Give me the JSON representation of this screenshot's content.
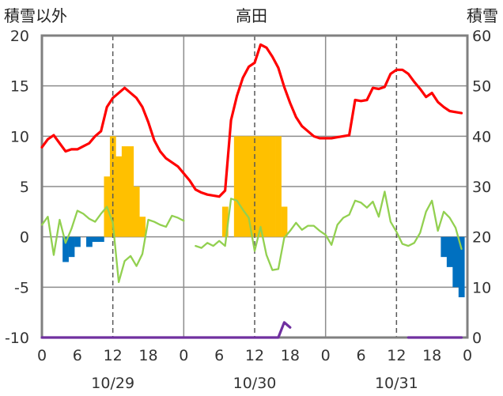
{
  "chart_data": {
    "type": "line",
    "title": "高田",
    "ylabel": "積雪以外",
    "y2label": "積雪",
    "ylim": [
      -10,
      20
    ],
    "y2lim": [
      0,
      60
    ],
    "yticks": [
      "20",
      "15",
      "10",
      "5",
      "0",
      "-5",
      "-10"
    ],
    "y2ticks": [
      "60",
      "50",
      "40",
      "30",
      "20",
      "10",
      "0"
    ],
    "xticks": [
      "0",
      "6",
      "12",
      "18",
      "0",
      "6",
      "12",
      "18",
      "0",
      "6",
      "12",
      "18",
      "0"
    ],
    "dates": [
      "10/29",
      "10/30",
      "10/31"
    ],
    "hours": [
      0,
      1,
      2,
      3,
      4,
      5,
      6,
      7,
      8,
      9,
      10,
      11,
      12,
      13,
      14,
      15,
      16,
      17,
      18,
      19,
      20,
      21,
      22,
      23
    ],
    "grid": true,
    "series": [
      {
        "type": "bar",
        "axis": "left",
        "color": "#FFC000",
        "values": [
          [
            0,
            0,
            0,
            0,
            0,
            0,
            0,
            0,
            0,
            0,
            0,
            6,
            10,
            8,
            9,
            9,
            5,
            2,
            0,
            0,
            0,
            0,
            0,
            0
          ],
          [
            0,
            0,
            0,
            0,
            0,
            0,
            0,
            3,
            0,
            10,
            10,
            10,
            10,
            10,
            10,
            10,
            10,
            3,
            0,
            0,
            0,
            0,
            0,
            0
          ],
          [
            0,
            0,
            0,
            0,
            0,
            0,
            0,
            0,
            0,
            0,
            0,
            0,
            0,
            0,
            0,
            0,
            0,
            0,
            0,
            0,
            0,
            0,
            0,
            0
          ]
        ]
      },
      {
        "type": "bar",
        "axis": "left",
        "color": "#0070C0",
        "values": [
          [
            0,
            0,
            0,
            0,
            -2.5,
            -2.0,
            -1.0,
            0,
            -1.0,
            -0.5,
            -0.5,
            0,
            0,
            0,
            0,
            0,
            0,
            0,
            0,
            0,
            0,
            0,
            0,
            0
          ],
          [
            0,
            0,
            0,
            0,
            0,
            0,
            0,
            0,
            0,
            0,
            0,
            0,
            0,
            0,
            0,
            0,
            0,
            0,
            0,
            0,
            0,
            0,
            0,
            0
          ],
          [
            0,
            0,
            0,
            0,
            0,
            0,
            0,
            0,
            0,
            0,
            0,
            0,
            0,
            0,
            0,
            0,
            0,
            0,
            0,
            0,
            -2.0,
            -3.0,
            -5.0,
            -6.0
          ]
        ]
      },
      {
        "type": "line",
        "axis": "left",
        "color": "#92D050",
        "values": [
          [
            1.2,
            2.0,
            -1.8,
            1.7,
            -0.6,
            0.8,
            2.6,
            2.3,
            1.8,
            1.5,
            2.3,
            3.0,
            1.4,
            -4.5,
            -2.4,
            -1.9,
            -2.9,
            -1.7,
            1.7,
            1.5,
            1.2,
            1.0,
            2.1,
            1.9
          ],
          [
            1.6,
            null,
            -0.9,
            -1.1,
            -0.6,
            -0.9,
            -0.4,
            -0.9,
            3.8,
            3.6,
            2.7,
            1.9,
            -1.4,
            1.0,
            -1.8,
            -3.3,
            -3.2,
            -0.1,
            0.6,
            1.4,
            0.7,
            1.1,
            1.1,
            0.6
          ],
          [
            0.2,
            -0.8,
            1.2,
            1.9,
            2.2,
            3.6,
            3.4,
            2.9,
            3.5,
            2.0,
            4.5,
            1.5,
            0.5,
            -0.7,
            -0.9,
            -0.6,
            0.4,
            2.5,
            3.6,
            0.6,
            2.5,
            1.9,
            0.9,
            -1.2
          ]
        ]
      },
      {
        "type": "line",
        "axis": "left",
        "color": "#FF0000",
        "values": [
          [
            8.9,
            9.7,
            10.1,
            9.3,
            8.5,
            8.7,
            8.7,
            9.0,
            9.3,
            10.0,
            10.5,
            12.9,
            13.8,
            14.3,
            14.8,
            14.3,
            13.8,
            12.9,
            11.4,
            9.6,
            8.5,
            7.8,
            7.4,
            7.0
          ],
          [
            6.3,
            5.6,
            4.7,
            4.4,
            4.2,
            4.1,
            4.0,
            4.6,
            11.6,
            14.0,
            15.8,
            16.9,
            17.3,
            19.1,
            18.8,
            17.9,
            16.8,
            14.9,
            13.3,
            11.9,
            11.0,
            10.5,
            10.0,
            9.8
          ],
          [
            9.8,
            9.8,
            9.9,
            10.0,
            10.1,
            13.6,
            13.5,
            13.6,
            14.8,
            14.7,
            14.9,
            16.2,
            16.6,
            16.6,
            16.2,
            15.4,
            14.7,
            13.9,
            14.3,
            13.4,
            12.9,
            12.5,
            12.4,
            12.3
          ]
        ]
      },
      {
        "type": "line",
        "axis": "right",
        "color": "#7030A0",
        "values": [
          [
            0,
            0,
            0,
            0,
            0,
            0,
            0,
            0,
            0,
            0,
            0,
            0,
            0,
            0,
            0,
            0,
            0,
            0,
            0,
            0,
            0,
            0,
            0,
            0
          ],
          [
            0,
            0,
            0,
            0,
            0,
            0,
            0,
            0,
            0,
            0,
            0,
            0,
            0,
            0,
            0,
            0,
            0,
            3,
            2,
            null,
            null,
            null,
            null,
            null
          ],
          [
            null,
            null,
            null,
            null,
            null,
            null,
            null,
            null,
            null,
            null,
            null,
            null,
            null,
            null,
            0,
            0,
            0,
            0,
            0,
            0,
            0,
            0,
            0,
            0
          ]
        ]
      }
    ]
  }
}
